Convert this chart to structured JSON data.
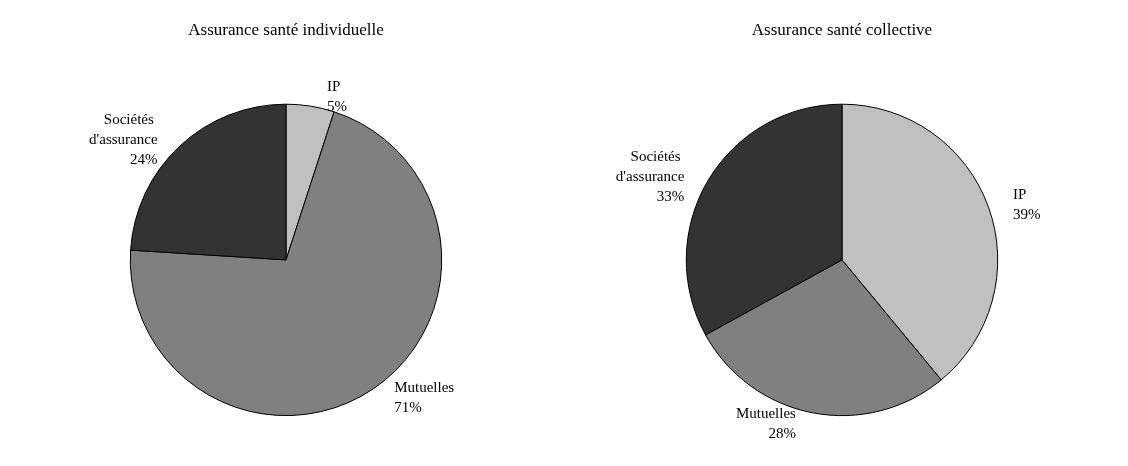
{
  "chart_data": [
    {
      "type": "pie",
      "title": "Assurance santé individuelle",
      "categories": [
        "IP",
        "Mutuelles",
        "Sociétés d'assurance"
      ],
      "values": [
        5,
        71,
        24
      ],
      "value_labels": [
        "5%",
        "71%",
        "24%"
      ],
      "colors": [
        "#c0c0c0",
        "#808080",
        "#333333"
      ]
    },
    {
      "type": "pie",
      "title": "Assurance santé collective",
      "categories": [
        "IP",
        "Mutuelles",
        "Sociétés d'assurance"
      ],
      "values": [
        39,
        28,
        33
      ],
      "value_labels": [
        "39%",
        "28%",
        "33%"
      ],
      "colors": [
        "#c0c0c0",
        "#808080",
        "#333333"
      ]
    }
  ]
}
